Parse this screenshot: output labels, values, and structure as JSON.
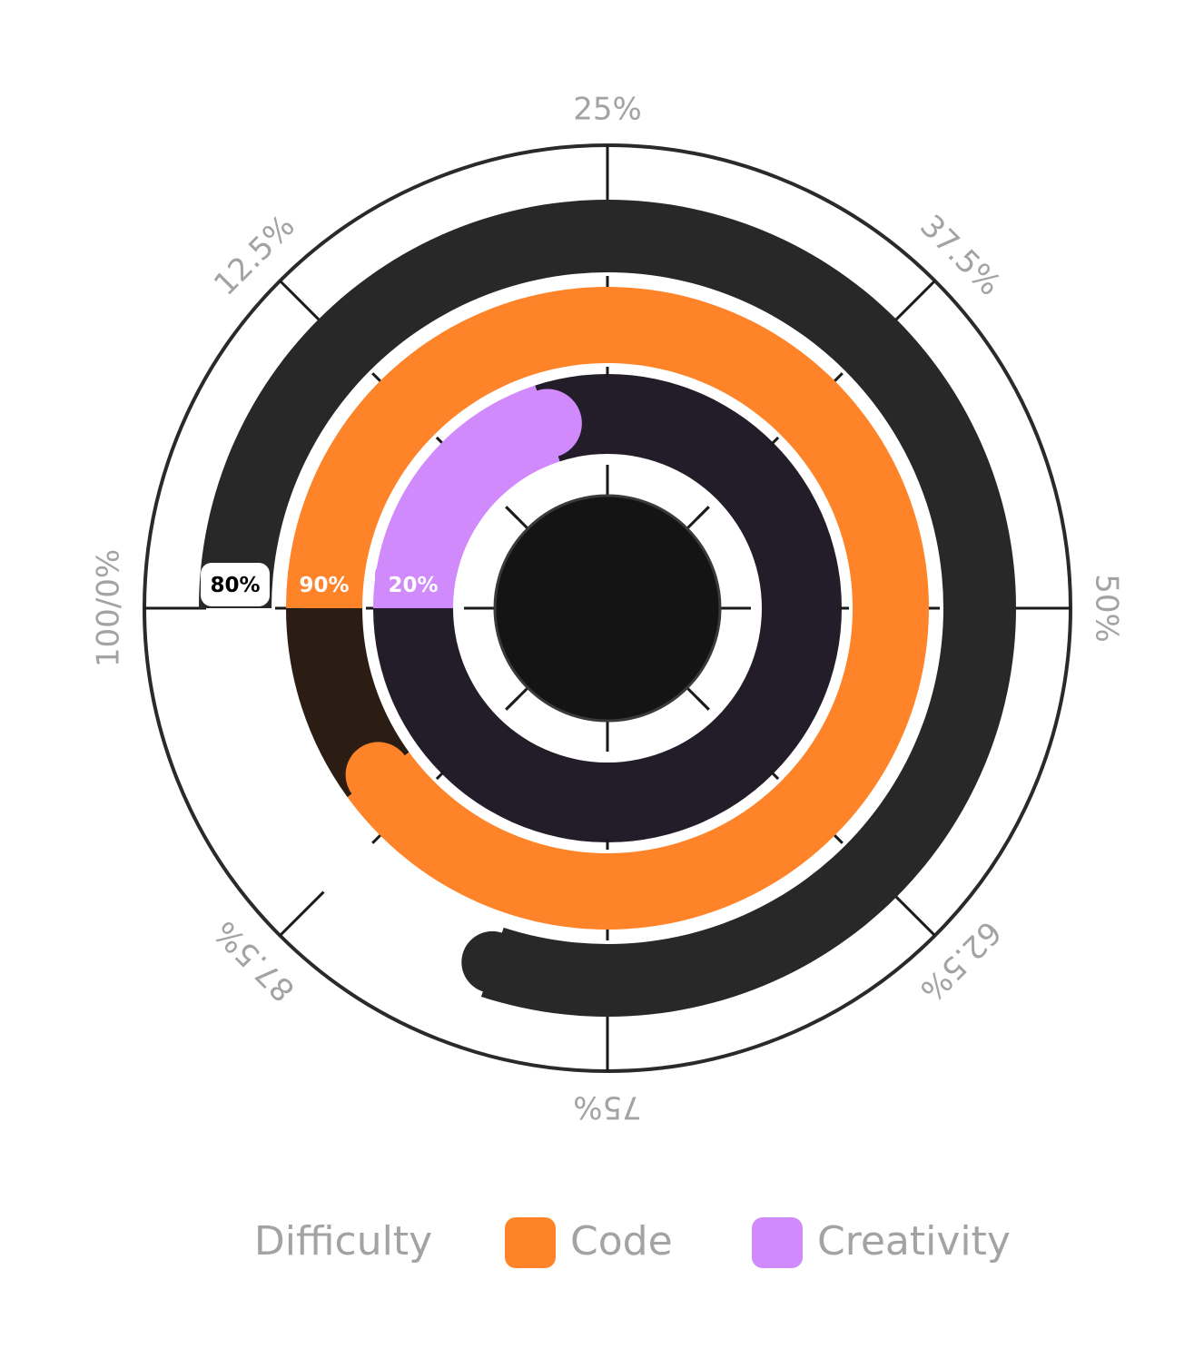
{
  "chart_data": {
    "type": "radial-bar",
    "title": "",
    "scale_labels": [
      "100/0%",
      "12.5%",
      "25%",
      "37.5%",
      "50%",
      "62.5%",
      "75%",
      "87.5%"
    ],
    "series": [
      {
        "name": "Difficulty",
        "value": 80,
        "label": "80%",
        "color": "#282828",
        "track_color": "#ffffff",
        "label_color": "#000000",
        "pill_color": "#ffffff"
      },
      {
        "name": "Code",
        "value": 90,
        "label": "90%",
        "color": "#ff8329",
        "track_color": "#2b1d14",
        "label_color": "#ffffff",
        "pill_color": "#ff8329"
      },
      {
        "name": "Creativity",
        "value": 20,
        "label": "20%",
        "color": "#d08afc",
        "track_color": "#231c29",
        "label_color": "#ffffff",
        "pill_color": "#d08afc"
      }
    ],
    "legend": {
      "placement": "bottom",
      "items": [
        {
          "label": "Difficulty",
          "swatch": false
        },
        {
          "label": "Code",
          "swatch": true,
          "color": "#ff8329"
        },
        {
          "label": "Creativity",
          "swatch": true,
          "color": "#d08afc"
        }
      ]
    },
    "center_color": "#141414",
    "outline_color": "#2a2a2a"
  }
}
